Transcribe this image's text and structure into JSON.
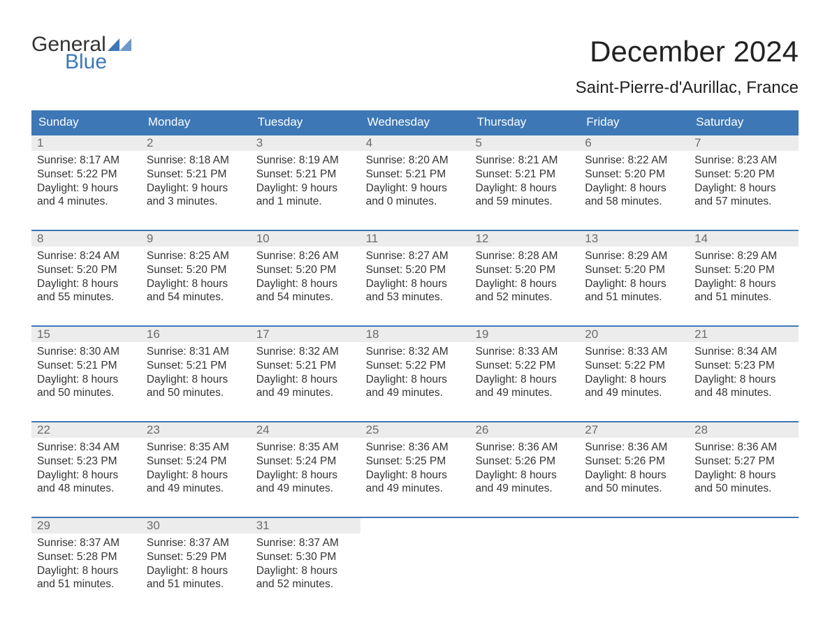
{
  "logo": {
    "general": "General",
    "blue": "Blue",
    "tri_color": "#3d77b6"
  },
  "title": "December 2024",
  "location": "Saint-Pierre-d'Aurillac, France",
  "colors": {
    "header_bg": "#3d77b6",
    "header_text": "#ffffff",
    "daynum_bg": "#ececec",
    "daynum_text": "#6b6b6b",
    "body_text": "#333333",
    "week_border": "#3d77b6",
    "page_bg": "#ffffff"
  },
  "typography": {
    "title_size": 42,
    "location_size": 24,
    "dow_size": 17,
    "daynum_size": 17,
    "body_size": 15.5
  },
  "day_headers": [
    "Sunday",
    "Monday",
    "Tuesday",
    "Wednesday",
    "Thursday",
    "Friday",
    "Saturday"
  ],
  "weeks": [
    [
      {
        "n": "1",
        "sr": "Sunrise: 8:17 AM",
        "ss": "Sunset: 5:22 PM",
        "d1": "Daylight: 9 hours",
        "d2": "and 4 minutes."
      },
      {
        "n": "2",
        "sr": "Sunrise: 8:18 AM",
        "ss": "Sunset: 5:21 PM",
        "d1": "Daylight: 9 hours",
        "d2": "and 3 minutes."
      },
      {
        "n": "3",
        "sr": "Sunrise: 8:19 AM",
        "ss": "Sunset: 5:21 PM",
        "d1": "Daylight: 9 hours",
        "d2": "and 1 minute."
      },
      {
        "n": "4",
        "sr": "Sunrise: 8:20 AM",
        "ss": "Sunset: 5:21 PM",
        "d1": "Daylight: 9 hours",
        "d2": "and 0 minutes."
      },
      {
        "n": "5",
        "sr": "Sunrise: 8:21 AM",
        "ss": "Sunset: 5:21 PM",
        "d1": "Daylight: 8 hours",
        "d2": "and 59 minutes."
      },
      {
        "n": "6",
        "sr": "Sunrise: 8:22 AM",
        "ss": "Sunset: 5:20 PM",
        "d1": "Daylight: 8 hours",
        "d2": "and 58 minutes."
      },
      {
        "n": "7",
        "sr": "Sunrise: 8:23 AM",
        "ss": "Sunset: 5:20 PM",
        "d1": "Daylight: 8 hours",
        "d2": "and 57 minutes."
      }
    ],
    [
      {
        "n": "8",
        "sr": "Sunrise: 8:24 AM",
        "ss": "Sunset: 5:20 PM",
        "d1": "Daylight: 8 hours",
        "d2": "and 55 minutes."
      },
      {
        "n": "9",
        "sr": "Sunrise: 8:25 AM",
        "ss": "Sunset: 5:20 PM",
        "d1": "Daylight: 8 hours",
        "d2": "and 54 minutes."
      },
      {
        "n": "10",
        "sr": "Sunrise: 8:26 AM",
        "ss": "Sunset: 5:20 PM",
        "d1": "Daylight: 8 hours",
        "d2": "and 54 minutes."
      },
      {
        "n": "11",
        "sr": "Sunrise: 8:27 AM",
        "ss": "Sunset: 5:20 PM",
        "d1": "Daylight: 8 hours",
        "d2": "and 53 minutes."
      },
      {
        "n": "12",
        "sr": "Sunrise: 8:28 AM",
        "ss": "Sunset: 5:20 PM",
        "d1": "Daylight: 8 hours",
        "d2": "and 52 minutes."
      },
      {
        "n": "13",
        "sr": "Sunrise: 8:29 AM",
        "ss": "Sunset: 5:20 PM",
        "d1": "Daylight: 8 hours",
        "d2": "and 51 minutes."
      },
      {
        "n": "14",
        "sr": "Sunrise: 8:29 AM",
        "ss": "Sunset: 5:20 PM",
        "d1": "Daylight: 8 hours",
        "d2": "and 51 minutes."
      }
    ],
    [
      {
        "n": "15",
        "sr": "Sunrise: 8:30 AM",
        "ss": "Sunset: 5:21 PM",
        "d1": "Daylight: 8 hours",
        "d2": "and 50 minutes."
      },
      {
        "n": "16",
        "sr": "Sunrise: 8:31 AM",
        "ss": "Sunset: 5:21 PM",
        "d1": "Daylight: 8 hours",
        "d2": "and 50 minutes."
      },
      {
        "n": "17",
        "sr": "Sunrise: 8:32 AM",
        "ss": "Sunset: 5:21 PM",
        "d1": "Daylight: 8 hours",
        "d2": "and 49 minutes."
      },
      {
        "n": "18",
        "sr": "Sunrise: 8:32 AM",
        "ss": "Sunset: 5:22 PM",
        "d1": "Daylight: 8 hours",
        "d2": "and 49 minutes."
      },
      {
        "n": "19",
        "sr": "Sunrise: 8:33 AM",
        "ss": "Sunset: 5:22 PM",
        "d1": "Daylight: 8 hours",
        "d2": "and 49 minutes."
      },
      {
        "n": "20",
        "sr": "Sunrise: 8:33 AM",
        "ss": "Sunset: 5:22 PM",
        "d1": "Daylight: 8 hours",
        "d2": "and 49 minutes."
      },
      {
        "n": "21",
        "sr": "Sunrise: 8:34 AM",
        "ss": "Sunset: 5:23 PM",
        "d1": "Daylight: 8 hours",
        "d2": "and 48 minutes."
      }
    ],
    [
      {
        "n": "22",
        "sr": "Sunrise: 8:34 AM",
        "ss": "Sunset: 5:23 PM",
        "d1": "Daylight: 8 hours",
        "d2": "and 48 minutes."
      },
      {
        "n": "23",
        "sr": "Sunrise: 8:35 AM",
        "ss": "Sunset: 5:24 PM",
        "d1": "Daylight: 8 hours",
        "d2": "and 49 minutes."
      },
      {
        "n": "24",
        "sr": "Sunrise: 8:35 AM",
        "ss": "Sunset: 5:24 PM",
        "d1": "Daylight: 8 hours",
        "d2": "and 49 minutes."
      },
      {
        "n": "25",
        "sr": "Sunrise: 8:36 AM",
        "ss": "Sunset: 5:25 PM",
        "d1": "Daylight: 8 hours",
        "d2": "and 49 minutes."
      },
      {
        "n": "26",
        "sr": "Sunrise: 8:36 AM",
        "ss": "Sunset: 5:26 PM",
        "d1": "Daylight: 8 hours",
        "d2": "and 49 minutes."
      },
      {
        "n": "27",
        "sr": "Sunrise: 8:36 AM",
        "ss": "Sunset: 5:26 PM",
        "d1": "Daylight: 8 hours",
        "d2": "and 50 minutes."
      },
      {
        "n": "28",
        "sr": "Sunrise: 8:36 AM",
        "ss": "Sunset: 5:27 PM",
        "d1": "Daylight: 8 hours",
        "d2": "and 50 minutes."
      }
    ],
    [
      {
        "n": "29",
        "sr": "Sunrise: 8:37 AM",
        "ss": "Sunset: 5:28 PM",
        "d1": "Daylight: 8 hours",
        "d2": "and 51 minutes."
      },
      {
        "n": "30",
        "sr": "Sunrise: 8:37 AM",
        "ss": "Sunset: 5:29 PM",
        "d1": "Daylight: 8 hours",
        "d2": "and 51 minutes."
      },
      {
        "n": "31",
        "sr": "Sunrise: 8:37 AM",
        "ss": "Sunset: 5:30 PM",
        "d1": "Daylight: 8 hours",
        "d2": "and 52 minutes."
      },
      {
        "n": "",
        "sr": "",
        "ss": "",
        "d1": "",
        "d2": ""
      },
      {
        "n": "",
        "sr": "",
        "ss": "",
        "d1": "",
        "d2": ""
      },
      {
        "n": "",
        "sr": "",
        "ss": "",
        "d1": "",
        "d2": ""
      },
      {
        "n": "",
        "sr": "",
        "ss": "",
        "d1": "",
        "d2": ""
      }
    ]
  ]
}
